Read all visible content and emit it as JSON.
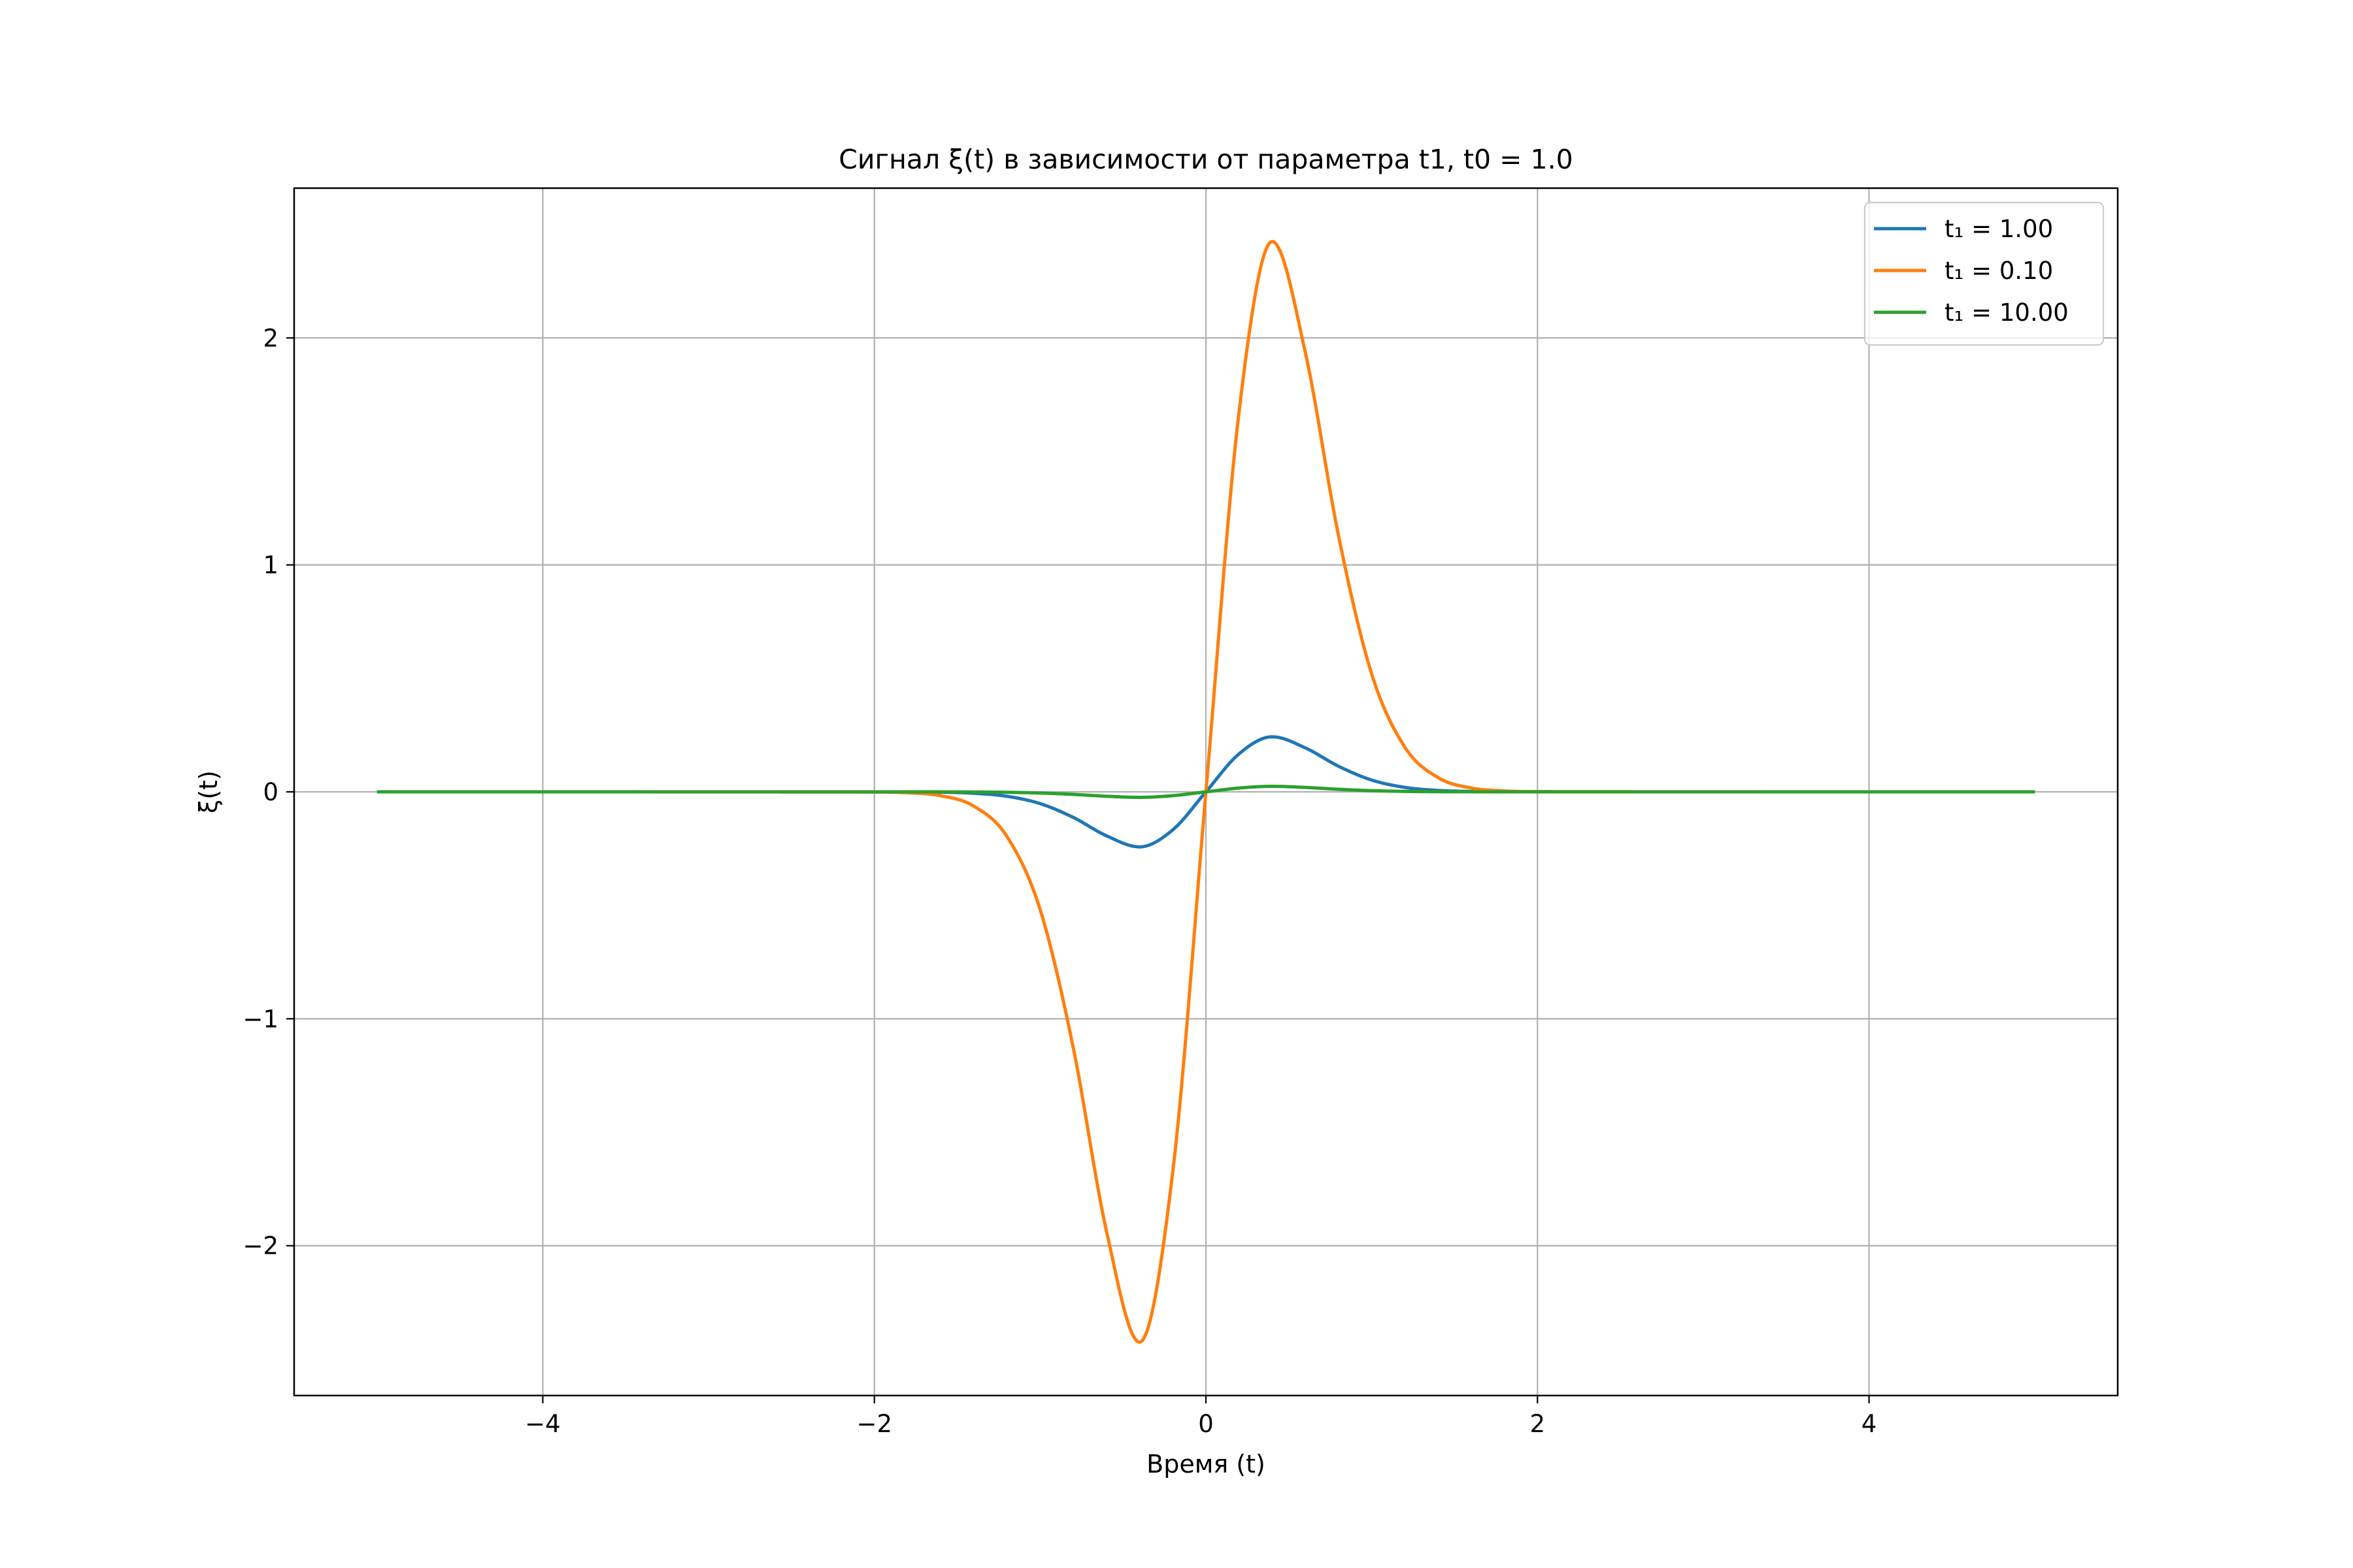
{
  "chart_data": {
    "type": "line",
    "title": "Сигнал ξ(t) в зависимости от параметра t1, t0 = 1.0",
    "xlabel": "Время (t)",
    "ylabel": "ξ(t)",
    "xlim": [
      -5.5,
      5.5
    ],
    "ylim": [
      -2.66,
      2.66
    ],
    "xticks": [
      -4,
      -2,
      0,
      2,
      4
    ],
    "xtick_labels": [
      "−4",
      "−2",
      "0",
      "2",
      "4"
    ],
    "yticks": [
      -2,
      -1,
      0,
      1,
      2
    ],
    "ytick_labels": [
      "−2",
      "−1",
      "0",
      "1",
      "2"
    ],
    "grid": true,
    "legend_position": "top-right",
    "x_range": [
      -5,
      5
    ],
    "series": [
      {
        "name": "t₁ = 1.00",
        "color": "#1f77b4",
        "x": [
          -5,
          -2,
          -1.8,
          -1.6,
          -1.4,
          -1.2,
          -1.0,
          -0.8,
          -0.6,
          -0.4,
          -0.2,
          0,
          0.2,
          0.4,
          0.6,
          0.8,
          1.0,
          1.2,
          1.4,
          1.6,
          1.8,
          2,
          5
        ],
        "y": [
          0,
          -0.0001,
          -0.0004,
          -0.0017,
          -0.0063,
          -0.0197,
          -0.0519,
          -0.1128,
          -0.1935,
          -0.2425,
          -0.1675,
          0,
          0.1675,
          0.2425,
          0.1935,
          0.1128,
          0.0519,
          0.0197,
          0.0063,
          0.0017,
          0.0004,
          0.0001,
          0
        ]
      },
      {
        "name": "t₁ = 0.10",
        "color": "#ff7f0e",
        "x": [
          -5,
          -2,
          -1.8,
          -1.6,
          -1.4,
          -1.2,
          -1.0,
          -0.8,
          -0.6,
          -0.4,
          -0.2,
          0,
          0.2,
          0.4,
          0.6,
          0.8,
          1.0,
          1.2,
          1.4,
          1.6,
          1.8,
          2,
          5
        ],
        "y": [
          0,
          -0.001,
          -0.004,
          -0.017,
          -0.063,
          -0.197,
          -0.519,
          -1.128,
          -1.935,
          -2.425,
          -1.675,
          0,
          1.675,
          2.425,
          1.935,
          1.128,
          0.519,
          0.197,
          0.063,
          0.017,
          0.004,
          0.001,
          0
        ]
      },
      {
        "name": "t₁ = 10.00",
        "color": "#2ca02c",
        "x": [
          -5,
          -2,
          -1.8,
          -1.6,
          -1.4,
          -1.2,
          -1.0,
          -0.8,
          -0.6,
          -0.4,
          -0.2,
          0,
          0.2,
          0.4,
          0.6,
          0.8,
          1.0,
          1.2,
          1.4,
          1.6,
          1.8,
          2,
          5
        ],
        "y": [
          0,
          0,
          0,
          -0.0002,
          -0.0006,
          -0.002,
          -0.0052,
          -0.0113,
          -0.0194,
          -0.0243,
          -0.0168,
          0,
          0.0168,
          0.0243,
          0.0194,
          0.0113,
          0.0052,
          0.002,
          0.0006,
          0.0002,
          0,
          0,
          0
        ]
      }
    ]
  }
}
